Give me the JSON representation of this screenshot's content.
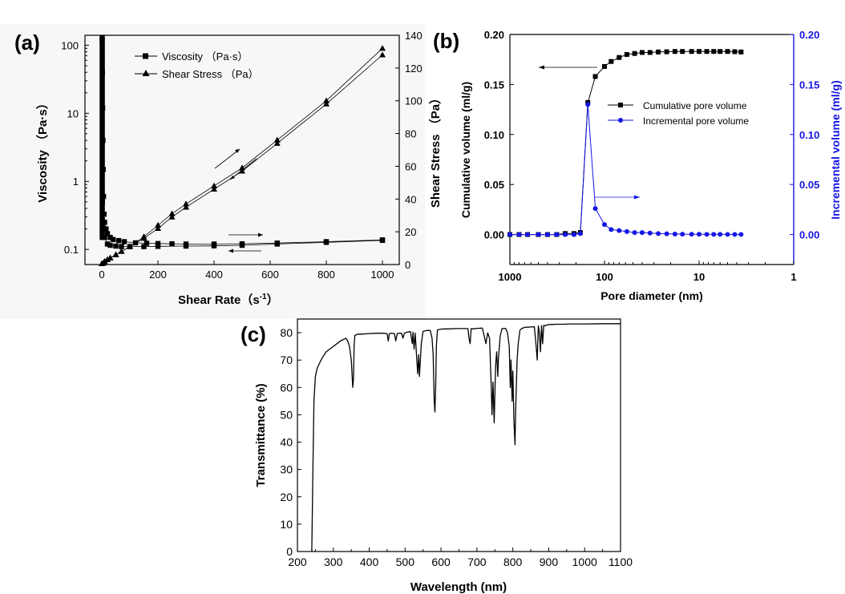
{
  "colors": {
    "black": "#000000",
    "blue": "#1515e6",
    "panel_bg": "#f7f7f7"
  },
  "chart_data": [
    {
      "panel": "(a)",
      "type": "line",
      "xlabel": "Shear Rate（s",
      "xlabel_sup": "-1",
      "xlabel_close": "）",
      "ylabel_left": "Viscosity （Pa·s）",
      "ylabel_right": "Shear Stress （Pa）",
      "xlim": [
        -60,
        1060
      ],
      "ylim_left_log": [
        0.06,
        140
      ],
      "ylim_right": [
        0,
        140
      ],
      "x_ticks": [
        0,
        200,
        400,
        600,
        800,
        1000
      ],
      "y_left_ticks": [
        {
          "v": 0.1,
          "label": "0.1"
        },
        {
          "v": 1,
          "label": "1"
        },
        {
          "v": 10,
          "label": "10"
        },
        {
          "v": 100,
          "label": "100"
        }
      ],
      "y_right_ticks": [
        0,
        20,
        40,
        60,
        80,
        100,
        120,
        140
      ],
      "legend": [
        "Viscosity （Pa·s）",
        "Shear Stress （Pa）"
      ],
      "series": [
        {
          "name": "Viscosity up",
          "marker": "square",
          "axis": "left",
          "x": [
            1,
            2,
            3,
            4,
            5,
            6,
            8,
            10,
            15,
            20,
            30,
            40,
            60,
            80,
            120,
            160,
            200,
            250,
            300,
            400,
            500,
            625,
            800,
            1000
          ],
          "y": [
            120,
            40,
            12,
            4,
            1.5,
            0.6,
            0.33,
            0.25,
            0.2,
            0.17,
            0.15,
            0.14,
            0.135,
            0.13,
            0.125,
            0.123,
            0.122,
            0.121,
            0.12,
            0.12,
            0.121,
            0.124,
            0.13,
            0.138
          ]
        },
        {
          "name": "Viscosity down",
          "marker": "square",
          "axis": "left",
          "x": [
            1000,
            800,
            625,
            500,
            400,
            300,
            200,
            150,
            100,
            70,
            50,
            30,
            20,
            10,
            5,
            2
          ],
          "y": [
            0.136,
            0.127,
            0.12,
            0.115,
            0.113,
            0.112,
            0.111,
            0.11,
            0.11,
            0.11,
            0.112,
            0.115,
            0.12,
            0.15,
            0.2,
            0.5
          ]
        },
        {
          "name": "Shear Stress up",
          "marker": "triangle",
          "axis": "right",
          "x": [
            0,
            10,
            20,
            30,
            50,
            70,
            100,
            150,
            200,
            250,
            300,
            400,
            500,
            625,
            800,
            1000
          ],
          "y": [
            0.5,
            2,
            3,
            4,
            6,
            8,
            11,
            17,
            24,
            31,
            37,
            48,
            59,
            76,
            100,
            132
          ]
        },
        {
          "name": "Shear Stress down",
          "marker": "triangle",
          "axis": "right",
          "x": [
            1000,
            800,
            625,
            500,
            400,
            300,
            250,
            200,
            150,
            100,
            70,
            50,
            30,
            20,
            10,
            5
          ],
          "y": [
            128,
            98,
            74,
            57,
            46,
            35,
            29,
            22,
            16,
            11,
            8,
            6,
            4,
            3,
            1.5,
            0.8
          ]
        }
      ]
    },
    {
      "panel": "(b)",
      "type": "line",
      "xlabel": "Pore diameter (nm)",
      "ylabel_left": "Cumulative volume (ml/g)",
      "ylabel_right": "Incremental volume (ml/g)",
      "xscale": "log-reversed",
      "xlim": [
        1000,
        1
      ],
      "ylim": [
        -0.03,
        0.2
      ],
      "x_ticks": [
        {
          "v": 1000,
          "label": "1000"
        },
        {
          "v": 100,
          "label": "100"
        },
        {
          "v": 10,
          "label": "10"
        },
        {
          "v": 1,
          "label": "1"
        }
      ],
      "y_ticks": [
        "0.00",
        "0.05",
        "0.10",
        "0.15",
        "0.20"
      ],
      "legend": [
        "Cumulative pore volume",
        "Incremental pore volume"
      ],
      "series": [
        {
          "name": "Cumulative pore volume",
          "color": "#000000",
          "marker": "square",
          "x": [
            1000,
            800,
            650,
            500,
            400,
            320,
            260,
            210,
            180,
            150,
            125,
            100,
            85,
            70,
            58,
            48,
            40,
            33,
            27,
            22,
            18,
            15,
            12,
            10,
            8.3,
            7,
            6,
            5,
            4.2,
            3.6
          ],
          "y": [
            0,
            0,
            0,
            0,
            0,
            0,
            0.001,
            0.001,
            0.002,
            0.132,
            0.158,
            0.168,
            0.173,
            0.177,
            0.18,
            0.181,
            0.182,
            0.182,
            0.1825,
            0.1827,
            0.183,
            0.183,
            0.183,
            0.183,
            0.183,
            0.183,
            0.183,
            0.183,
            0.1828,
            0.1825
          ]
        },
        {
          "name": "Incremental pore volume",
          "color": "#1515e6",
          "marker": "circle",
          "x": [
            1000,
            800,
            650,
            500,
            400,
            320,
            260,
            210,
            180,
            150,
            125,
            100,
            85,
            70,
            58,
            48,
            40,
            33,
            27,
            22,
            18,
            15,
            12,
            10,
            8.3,
            7,
            6,
            5,
            4.2,
            3.6
          ],
          "y": [
            0,
            0,
            0,
            0,
            0,
            0,
            0,
            0,
            0.001,
            0.13,
            0.026,
            0.01,
            0.005,
            0.004,
            0.003,
            0.002,
            0.002,
            0.0015,
            0.001,
            0.0008,
            0.0005,
            0.0004,
            0.0003,
            0.0003,
            0.0002,
            0.0002,
            0.0002,
            0.0001,
            0.0001,
            0.0001
          ]
        }
      ]
    },
    {
      "panel": "(c)",
      "type": "line",
      "xlabel": "Wavelength (nm)",
      "ylabel": "Transmittance (%)",
      "xlim": [
        200,
        1100
      ],
      "ylim": [
        0,
        85
      ],
      "x_ticks": [
        200,
        300,
        400,
        500,
        600,
        700,
        800,
        900,
        1000,
        1100
      ],
      "y_ticks": [
        0,
        10,
        20,
        30,
        40,
        50,
        60,
        70,
        80
      ],
      "series": [
        {
          "name": "Transmittance",
          "x": [
            240,
            243,
            246,
            250,
            255,
            262,
            270,
            280,
            290,
            300,
            310,
            320,
            335,
            340,
            345,
            350,
            354,
            356,
            358,
            360,
            365,
            370,
            380,
            400,
            420,
            440,
            450,
            453,
            456,
            460,
            470,
            474,
            478,
            482,
            490,
            494,
            498,
            505,
            515,
            520,
            522,
            525,
            528,
            532,
            535,
            538,
            540,
            545,
            550,
            560,
            570,
            575,
            578,
            581,
            583,
            585,
            587,
            590,
            595,
            600,
            610,
            620,
            640,
            660,
            675,
            678,
            681,
            684,
            690,
            700,
            715,
            720,
            725,
            730,
            735,
            740,
            742,
            745,
            748,
            752,
            755,
            758,
            760,
            765,
            770,
            780,
            785,
            790,
            793,
            795,
            798,
            800,
            803,
            806,
            808,
            812,
            815,
            820,
            825,
            830,
            835,
            840,
            850,
            860,
            865,
            868,
            871,
            874,
            877,
            880,
            883,
            886,
            890,
            895,
            900,
            910,
            920,
            940,
            960,
            980,
            1000,
            1050,
            1100
          ],
          "y": [
            0,
            30,
            55,
            64,
            67,
            69,
            71,
            73,
            74,
            75,
            76,
            77,
            78,
            77,
            75,
            70,
            60,
            63,
            75,
            79,
            79.3,
            79.5,
            79.5,
            79.7,
            79.8,
            79.8,
            79.6,
            77,
            79.6,
            79.8,
            79.7,
            77,
            79.7,
            79.8,
            79.8,
            78,
            79.8,
            80.2,
            80.4,
            76,
            80.2,
            74,
            79.8,
            71,
            65,
            72,
            64,
            76,
            80.5,
            80.8,
            80.8,
            78,
            72,
            55,
            51,
            60,
            75,
            81,
            81.2,
            81.3,
            81.4,
            81.4,
            81.5,
            81.5,
            81.5,
            78,
            76,
            81.5,
            81.4,
            81.6,
            81.7,
            79,
            76,
            80,
            78,
            60,
            50,
            62,
            47,
            68,
            73,
            64,
            71,
            79,
            81.5,
            81.6,
            80,
            75,
            60,
            70,
            55,
            66,
            48,
            39,
            52,
            70,
            76,
            81,
            81.5,
            81.8,
            82,
            82,
            82.1,
            82.2,
            75,
            70,
            82.5,
            80,
            73,
            82.6,
            76,
            82.7,
            82.5,
            82.8,
            83,
            83,
            83.1,
            83.1,
            83.2,
            83.2,
            83.2,
            83.3,
            83.3
          ]
        }
      ]
    }
  ]
}
